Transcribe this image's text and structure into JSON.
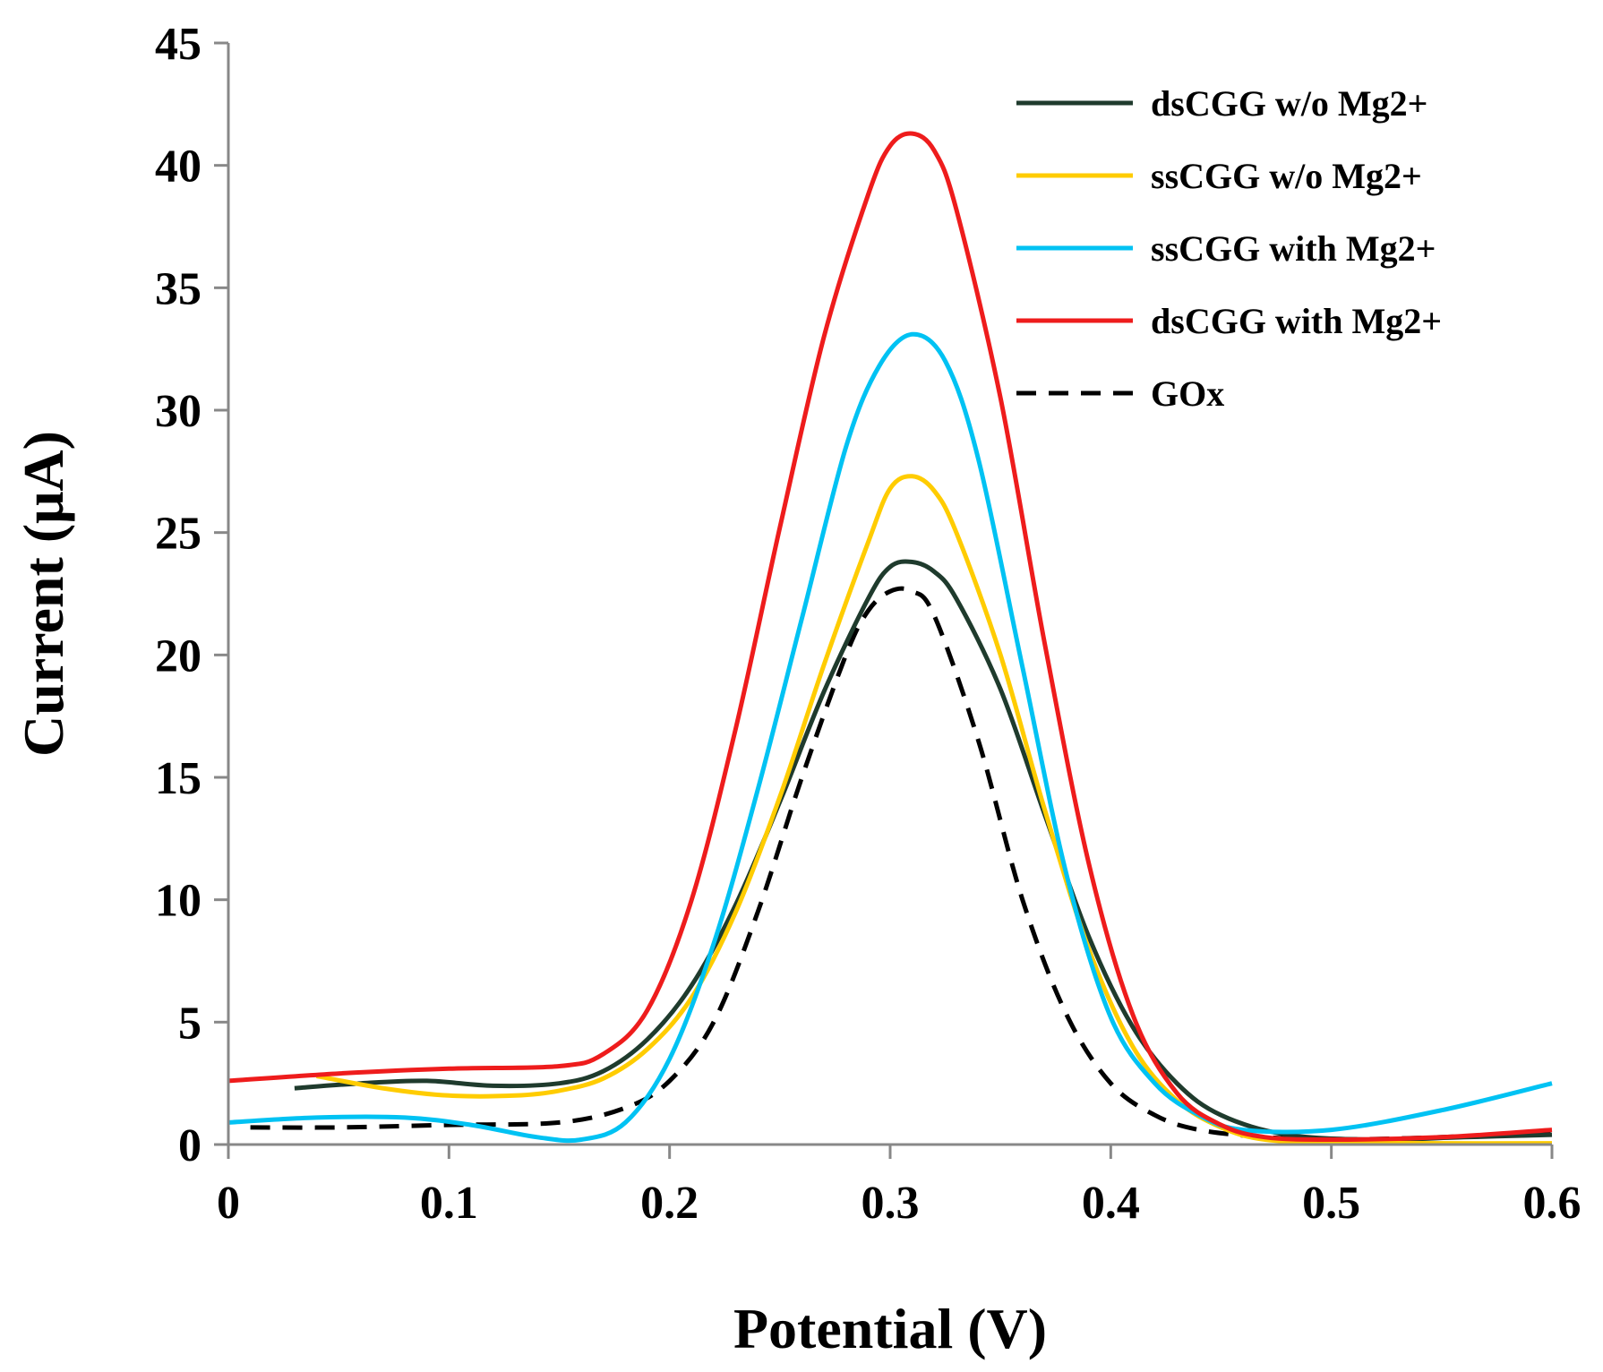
{
  "chart_data": {
    "type": "line",
    "title": "",
    "xlabel": "Potential (V)",
    "ylabel": "Current (μA)",
    "xlim": [
      0,
      0.6
    ],
    "ylim": [
      0,
      45
    ],
    "xticks": [
      "0",
      "0.1",
      "0.2",
      "0.3",
      "0.4",
      "0.5",
      "0.6"
    ],
    "yticks": [
      "0",
      "5",
      "10",
      "15",
      "20",
      "25",
      "30",
      "35",
      "40",
      "45"
    ],
    "grid": false,
    "legend_position": "top-right",
    "series": [
      {
        "name": "dsCGG w/o Mg2+",
        "color": "#1f3b2d",
        "dash": "solid",
        "x": [
          0.03,
          0.06,
          0.09,
          0.12,
          0.15,
          0.17,
          0.19,
          0.21,
          0.23,
          0.25,
          0.27,
          0.29,
          0.3,
          0.31,
          0.32,
          0.33,
          0.35,
          0.37,
          0.39,
          0.41,
          0.43,
          0.45,
          0.48,
          0.52,
          0.56,
          0.6
        ],
        "y": [
          2.3,
          2.5,
          2.6,
          2.4,
          2.5,
          3.0,
          4.3,
          6.5,
          9.8,
          14.0,
          18.5,
          22.3,
          23.6,
          23.8,
          23.4,
          22.3,
          18.6,
          13.5,
          8.5,
          4.8,
          2.5,
          1.2,
          0.4,
          0.2,
          0.3,
          0.4
        ]
      },
      {
        "name": "ssCGG w/o Mg2+",
        "color": "#ffcc00",
        "dash": "solid",
        "x": [
          0.04,
          0.07,
          0.1,
          0.13,
          0.15,
          0.17,
          0.19,
          0.21,
          0.23,
          0.25,
          0.27,
          0.29,
          0.3,
          0.31,
          0.32,
          0.33,
          0.35,
          0.37,
          0.39,
          0.41,
          0.43,
          0.45,
          0.47,
          0.5,
          0.55,
          0.6
        ],
        "y": [
          2.8,
          2.3,
          2.0,
          2.0,
          2.2,
          2.7,
          3.9,
          6.0,
          9.5,
          14.2,
          19.6,
          24.6,
          26.8,
          27.3,
          26.7,
          25.0,
          20.0,
          13.7,
          8.0,
          4.0,
          1.8,
          0.7,
          0.2,
          0.1,
          0.05,
          0.05
        ]
      },
      {
        "name": "ssCGG with Mg2+",
        "color": "#00c2f3",
        "dash": "solid",
        "x": [
          0.0,
          0.04,
          0.08,
          0.11,
          0.14,
          0.16,
          0.18,
          0.2,
          0.22,
          0.24,
          0.26,
          0.28,
          0.295,
          0.31,
          0.325,
          0.34,
          0.36,
          0.38,
          0.4,
          0.42,
          0.44,
          0.46,
          0.5,
          0.55,
          0.6
        ],
        "y": [
          0.9,
          1.1,
          1.1,
          0.8,
          0.3,
          0.2,
          0.9,
          3.5,
          8.2,
          14.5,
          21.5,
          28.5,
          31.8,
          33.1,
          32.0,
          28.0,
          19.5,
          11.0,
          5.2,
          2.5,
          1.2,
          0.6,
          0.6,
          1.4,
          2.5
        ]
      },
      {
        "name": "dsCGG with Mg2+",
        "color": "#ee1c1c",
        "dash": "solid",
        "x": [
          0.0,
          0.05,
          0.1,
          0.15,
          0.17,
          0.19,
          0.21,
          0.23,
          0.25,
          0.27,
          0.29,
          0.3,
          0.31,
          0.32,
          0.33,
          0.35,
          0.37,
          0.39,
          0.41,
          0.43,
          0.45,
          0.47,
          0.5,
          0.55,
          0.6
        ],
        "y": [
          2.6,
          2.9,
          3.1,
          3.2,
          3.7,
          5.5,
          10.0,
          17.0,
          25.2,
          33.0,
          38.8,
          40.8,
          41.3,
          40.6,
          38.2,
          30.5,
          20.5,
          11.5,
          5.3,
          2.1,
          0.8,
          0.3,
          0.2,
          0.3,
          0.6
        ]
      },
      {
        "name": "GOx",
        "color": "#000000",
        "dash": "dashed",
        "x": [
          0.01,
          0.05,
          0.1,
          0.15,
          0.18,
          0.2,
          0.22,
          0.24,
          0.26,
          0.28,
          0.29,
          0.3,
          0.31,
          0.32,
          0.34,
          0.36,
          0.38,
          0.4,
          0.42,
          0.44,
          0.47,
          0.5,
          0.55,
          0.6
        ],
        "y": [
          0.7,
          0.7,
          0.8,
          0.9,
          1.5,
          2.6,
          5.0,
          9.5,
          15.0,
          20.0,
          21.8,
          22.6,
          22.6,
          21.6,
          16.5,
          10.0,
          5.3,
          2.5,
          1.2,
          0.6,
          0.3,
          0.2,
          0.3,
          0.5
        ]
      }
    ]
  }
}
